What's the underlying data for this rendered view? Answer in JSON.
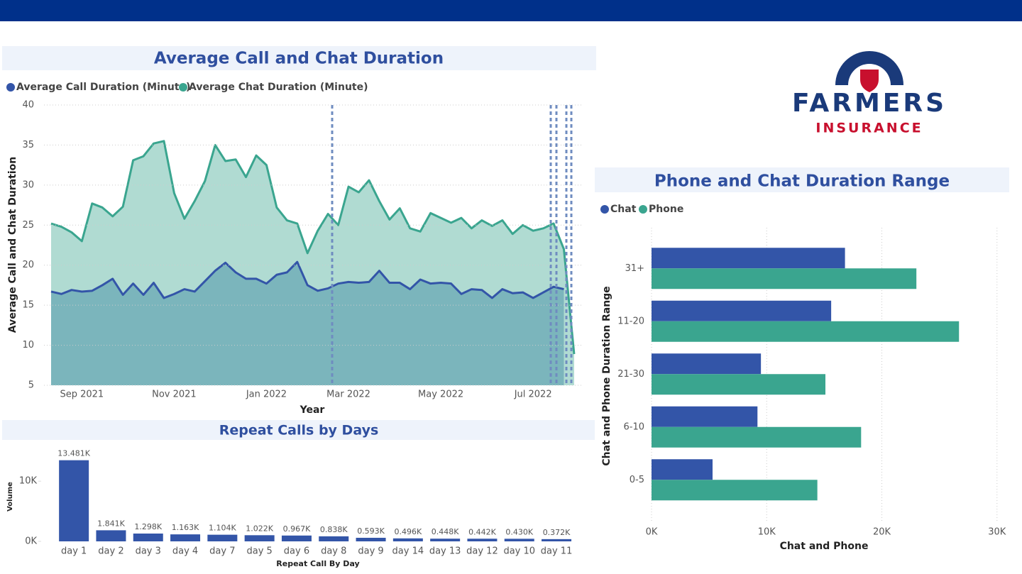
{
  "logo": {
    "name": "FARMERS",
    "tagline": "INSURANCE"
  },
  "chart_data": [
    {
      "type": "line",
      "title": "Average Call and Chat Duration",
      "x_label": "Year",
      "y_label": "Average Call and Chat Duration",
      "categories": [
        null,
        null,
        null,
        "Sep 2021",
        null,
        null,
        null,
        null,
        null,
        null,
        null,
        null,
        "Nov 2021",
        null,
        null,
        null,
        null,
        null,
        null,
        null,
        null,
        "Jan 2022",
        null,
        null,
        null,
        null,
        null,
        null,
        null,
        "Mar 2022",
        null,
        null,
        null,
        null,
        null,
        null,
        null,
        null,
        "May 2022",
        null,
        null,
        null,
        null,
        null,
        null,
        null,
        null,
        "Jul 2022",
        null,
        null,
        null,
        null
      ],
      "series": [
        {
          "name": "Average Call Duration (Minute)",
          "color": "#3355a8",
          "values": [
            16.7,
            16.4,
            16.9,
            16.7,
            16.8,
            17.5,
            18.3,
            16.3,
            17.7,
            16.3,
            17.8,
            15.9,
            16.4,
            17.0,
            16.7,
            18.0,
            19.3,
            20.3,
            19.1,
            18.3,
            18.3,
            17.7,
            18.8,
            19.1,
            20.4,
            17.5,
            16.8,
            17.1,
            17.7,
            17.9,
            17.8,
            17.9,
            19.3,
            17.8,
            17.8,
            17.0,
            18.2,
            17.7,
            17.8,
            17.7,
            16.4,
            17.0,
            16.9,
            15.9,
            17.0,
            16.5,
            16.6,
            15.9,
            16.6,
            17.3,
            17.0,
            null
          ]
        },
        {
          "name": "Average Chat Duration (Minute)",
          "color": "#3aa58f",
          "values": [
            25.2,
            24.8,
            24.1,
            23.0,
            27.7,
            27.2,
            26.1,
            27.3,
            33.1,
            33.6,
            35.2,
            35.5,
            29.0,
            25.8,
            28.0,
            30.5,
            35.0,
            33.0,
            33.2,
            31.0,
            33.7,
            32.5,
            27.2,
            25.6,
            25.2,
            21.5,
            24.3,
            26.4,
            25.0,
            29.8,
            29.1,
            30.6,
            28.0,
            25.7,
            27.1,
            24.6,
            24.2,
            26.5,
            25.9,
            25.3,
            25.9,
            24.6,
            25.6,
            24.9,
            25.6,
            23.9,
            25.0,
            24.3,
            24.6,
            25.2,
            22.0,
            8.9
          ]
        }
      ],
      "ylim": [
        5,
        40
      ],
      "yticks": [
        5,
        10,
        15,
        20,
        25,
        30,
        35,
        40
      ],
      "grid": true,
      "legend": "top"
    },
    {
      "type": "bar",
      "title": "Repeat Calls by Days",
      "x_label": "Repeat Call By Day",
      "y_label": "Volume",
      "categories": [
        "day 1",
        "day 2",
        "day 3",
        "day 4",
        "day 7",
        "day 5",
        "day 6",
        "day 8",
        "day 9",
        "day 14",
        "day 13",
        "day 12",
        "day 10",
        "day 11"
      ],
      "values": [
        13481,
        1841,
        1298,
        1163,
        1104,
        1022,
        967,
        838,
        593,
        496,
        448,
        442,
        430,
        372
      ],
      "value_labels": [
        "13.481K",
        "1.841K",
        "1.298K",
        "1.163K",
        "1.104K",
        "1.022K",
        "0.967K",
        "0.838K",
        "0.593K",
        "0.496K",
        "0.448K",
        "0.442K",
        "0.430K",
        "0.372K"
      ],
      "color": "#3355a8",
      "ylim": [
        0,
        14500
      ],
      "yticks": [
        {
          "value": 0,
          "label": "0K"
        },
        {
          "value": 10000,
          "label": "10K"
        }
      ],
      "grid": false
    },
    {
      "type": "hbar",
      "title": "Phone and Chat Duration Range",
      "x_label": "Chat and Phone",
      "y_label": "Chat and Phone Duration Range",
      "categories": [
        "31+",
        "11-20",
        "21-30",
        "6-10",
        "0-5"
      ],
      "series": [
        {
          "name": "Chat",
          "color": "#3355a8",
          "values": [
            16800,
            15600,
            9500,
            9200,
            5300
          ]
        },
        {
          "name": "Phone",
          "color": "#3aa58f",
          "values": [
            23000,
            26700,
            15100,
            18200,
            14400
          ]
        }
      ],
      "xlim": [
        0,
        31000
      ],
      "xticks": [
        {
          "value": 0,
          "label": "0K"
        },
        {
          "value": 10000,
          "label": "10K"
        },
        {
          "value": 20000,
          "label": "20K"
        },
        {
          "value": 30000,
          "label": "30K"
        }
      ],
      "grid": true,
      "legend": "top"
    }
  ]
}
